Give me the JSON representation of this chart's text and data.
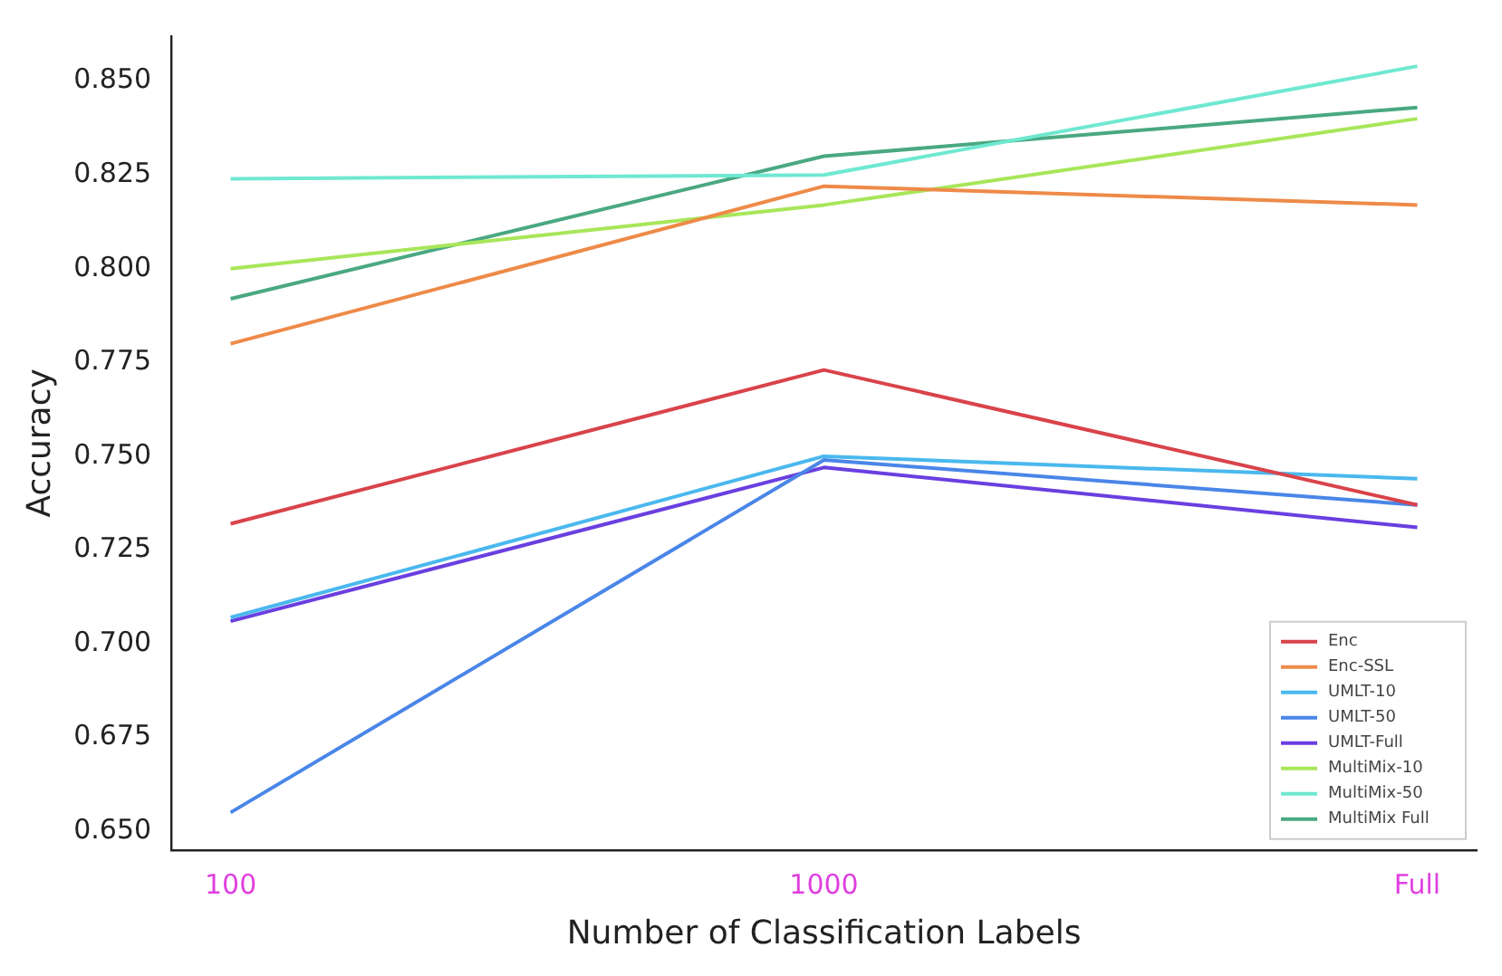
{
  "chart_data": {
    "type": "line",
    "xlabel": "Number of Classification Labels",
    "ylabel": "Accuracy",
    "categories": [
      "100",
      "1000",
      "Full"
    ],
    "series": [
      {
        "name": "Enc",
        "color": "#d9434b",
        "values": [
          0.732,
          0.773,
          0.737
        ]
      },
      {
        "name": "Enc-SSL",
        "color": "#ee8a48",
        "values": [
          0.78,
          0.822,
          0.817
        ]
      },
      {
        "name": "UMLT-10",
        "color": "#4ab8ee",
        "values": [
          0.707,
          0.75,
          0.744
        ]
      },
      {
        "name": "UMLT-50",
        "color": "#4a86e8",
        "values": [
          0.655,
          0.749,
          0.737
        ]
      },
      {
        "name": "UMLT-Full",
        "color": "#6a3fe0",
        "values": [
          0.706,
          0.747,
          0.731
        ]
      },
      {
        "name": "MultiMix-10",
        "color": "#a8e65a",
        "values": [
          0.8,
          0.817,
          0.84
        ]
      },
      {
        "name": "MultiMix-50",
        "color": "#6fe8d2",
        "values": [
          0.824,
          0.825,
          0.854
        ]
      },
      {
        "name": "MultiMix Full",
        "color": "#4aa882",
        "values": [
          0.792,
          0.83,
          0.843
        ]
      }
    ],
    "ylim": [
      0.645,
      0.862
    ],
    "yticks": [
      {
        "value": 0.65,
        "label": "0.650"
      },
      0.675,
      {
        "value": 0.7,
        "label": "0.700"
      },
      0.725,
      {
        "value": 0.75,
        "label": "0.750"
      },
      0.775,
      {
        "value": 0.8,
        "label": "0.800"
      },
      0.825,
      {
        "value": 0.85,
        "label": "0.850"
      }
    ],
    "grid": false,
    "legend": "bottom right",
    "marker": "none",
    "line_style": "solid"
  }
}
